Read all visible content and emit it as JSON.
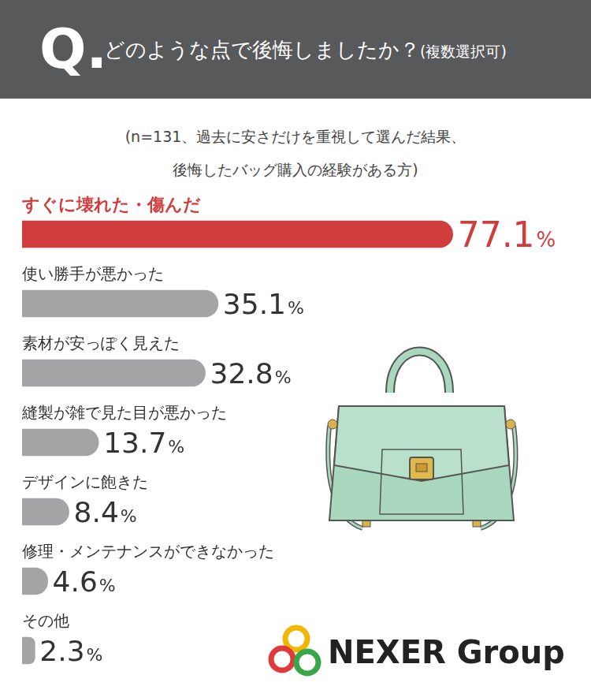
{
  "chart_data": {
    "type": "bar",
    "orientation": "horizontal",
    "title": "どのような点で後悔しましたか？(複数選択可)",
    "subtitle": [
      "(n=131、過去に安さだけを重視して選んだ結果、",
      "後悔したバッグ購入の経験がある方)"
    ],
    "annotations": [
      "Q.",
      "NEXER Group"
    ],
    "categories": [
      "すぐに壊れた・傷んだ",
      "使い勝手が悪かった",
      "素材が安っぽく見えた",
      "縫製が雑で見た目が悪かった",
      "デザインに飽きた",
      "修理・メンテナンスができなかった",
      "その他"
    ],
    "values": [
      77.1,
      35.1,
      32.8,
      13.7,
      8.4,
      4.6,
      2.3
    ],
    "value_labels": [
      "77.1%",
      "35.1%",
      "32.8%",
      "13.7%",
      "8.4%",
      "4.6%",
      "2.3%"
    ],
    "colors": [
      "#d13c3c",
      "#a4a4a6",
      "#a4a4a6",
      "#a4a4a6",
      "#a4a4a6",
      "#a4a4a6",
      "#a4a4a6"
    ],
    "xlim": [
      0,
      100
    ],
    "grid": false,
    "tick_labels": false,
    "data_labels": true
  }
}
